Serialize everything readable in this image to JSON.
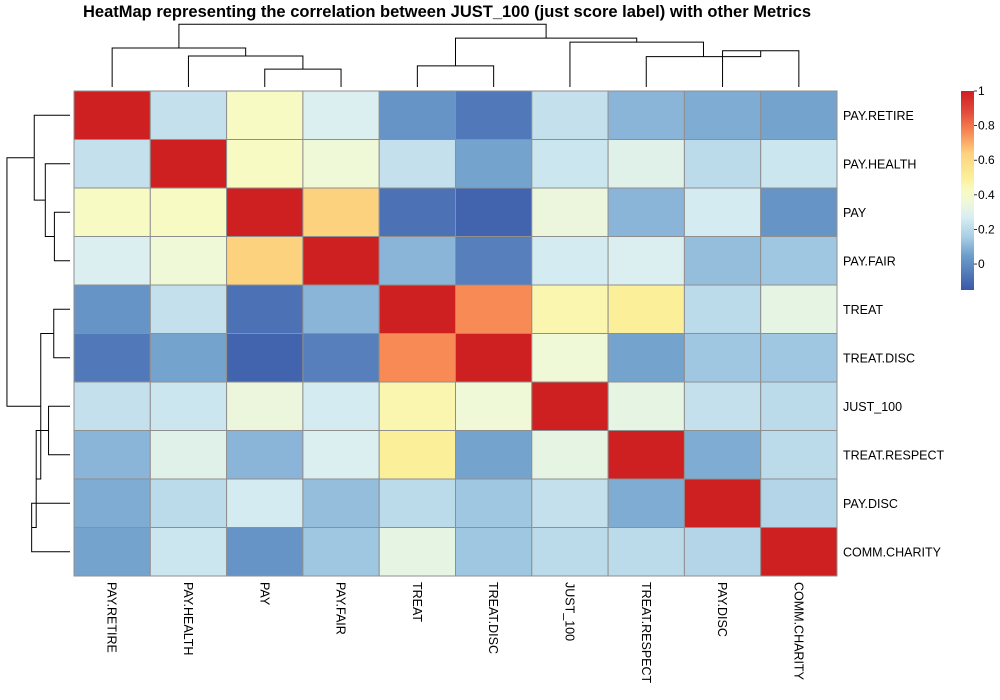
{
  "chart_data": {
    "type": "heatmap",
    "title": "HeatMap representing the correlation between JUST_100 (just score label) with other Metrics",
    "rows": [
      "PAY.RETIRE",
      "PAY.HEALTH",
      "PAY",
      "PAY.FAIR",
      "TREAT",
      "TREAT.DISC",
      "JUST_100",
      "TREAT.RESPECT",
      "PAY.DISC",
      "COMM.CHARITY"
    ],
    "columns": [
      "PAY.RETIRE",
      "PAY.HEALTH",
      "PAY",
      "PAY.FAIR",
      "TREAT",
      "TREAT.DISC",
      "JUST_100",
      "TREAT.RESPECT",
      "PAY.DISC",
      "COMM.CHARITY"
    ],
    "values": [
      [
        1.0,
        0.22,
        0.42,
        0.28,
        0.02,
        -0.06,
        0.22,
        0.1,
        0.08,
        0.06
      ],
      [
        0.22,
        1.0,
        0.42,
        0.36,
        0.22,
        0.06,
        0.24,
        0.3,
        0.2,
        0.24
      ],
      [
        0.42,
        0.42,
        1.0,
        0.64,
        -0.08,
        -0.12,
        0.34,
        0.1,
        0.26,
        0.02
      ],
      [
        0.28,
        0.36,
        0.64,
        1.0,
        0.1,
        -0.04,
        0.26,
        0.28,
        0.12,
        0.14
      ],
      [
        0.02,
        0.22,
        -0.08,
        0.1,
        1.0,
        0.76,
        0.46,
        0.5,
        0.2,
        0.32
      ],
      [
        -0.06,
        0.06,
        -0.12,
        -0.04,
        0.76,
        1.0,
        0.36,
        0.06,
        0.14,
        0.14
      ],
      [
        0.22,
        0.24,
        0.34,
        0.26,
        0.46,
        0.36,
        1.0,
        0.32,
        0.22,
        0.2
      ],
      [
        0.1,
        0.3,
        0.1,
        0.28,
        0.5,
        0.06,
        0.32,
        1.0,
        0.08,
        0.2
      ],
      [
        0.08,
        0.2,
        0.26,
        0.12,
        0.2,
        0.14,
        0.22,
        0.08,
        1.0,
        0.18
      ],
      [
        0.06,
        0.24,
        0.02,
        0.14,
        0.32,
        0.14,
        0.2,
        0.2,
        0.18,
        1.0
      ]
    ],
    "color_scale": {
      "min": -0.15,
      "max": 1.0,
      "stops": [
        {
          "value": -0.15,
          "color": "#3A58A7"
        },
        {
          "value": 0.05,
          "color": "#6E9ECC"
        },
        {
          "value": 0.15,
          "color": "#A6CCE3"
        },
        {
          "value": 0.27,
          "color": "#D8EEF3"
        },
        {
          "value": 0.35,
          "color": "#EEF7DA"
        },
        {
          "value": 0.43,
          "color": "#F8FBC0"
        },
        {
          "value": 0.5,
          "color": "#FCEF99"
        },
        {
          "value": 0.64,
          "color": "#FDD27E"
        },
        {
          "value": 0.76,
          "color": "#F88A55"
        },
        {
          "value": 0.88,
          "color": "#E24A3A"
        },
        {
          "value": 1.0,
          "color": "#CE1F21"
        }
      ]
    },
    "legend": {
      "placement": "right",
      "ticks": [
        1,
        0.8,
        0.6,
        0.4,
        0.2,
        0
      ]
    },
    "row_dendrogram": [
      "PAY.RETIRE",
      "PAY.HEALTH",
      "PAY",
      "PAY.FAIR",
      "TREAT",
      "TREAT.DISC",
      "JUST_100",
      "TREAT.RESPECT",
      "PAY.DISC",
      "COMM.CHARITY"
    ],
    "column_dendrogram": [
      "PAY.RETIRE",
      "PAY.HEALTH",
      "PAY",
      "PAY.FAIR",
      "TREAT",
      "TREAT.DISC",
      "JUST_100",
      "TREAT.RESPECT",
      "PAY.DISC",
      "COMM.CHARITY"
    ]
  }
}
